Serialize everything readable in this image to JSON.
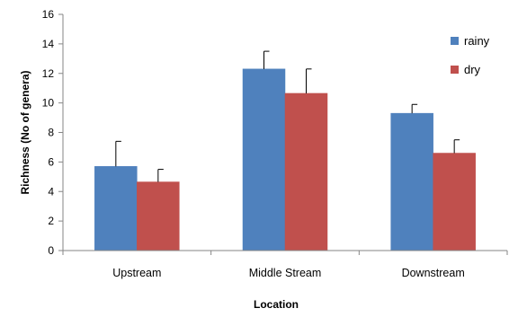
{
  "chart_data": {
    "type": "bar",
    "categories": [
      "Upstream",
      "Middle Stream",
      "Downstream"
    ],
    "series": [
      {
        "name": "rainy",
        "color": "#4F81BD",
        "values": [
          5.7,
          12.3,
          9.3
        ],
        "errors": [
          1.7,
          1.2,
          0.6
        ]
      },
      {
        "name": "dry",
        "color": "#C0504D",
        "values": [
          4.65,
          10.65,
          6.6
        ],
        "errors": [
          0.85,
          1.65,
          0.9
        ]
      }
    ],
    "xlabel": "Location",
    "ylabel": "Richness (No of genera)",
    "ylim": [
      0,
      16
    ],
    "yticks": [
      0,
      2,
      4,
      6,
      8,
      10,
      12,
      14,
      16
    ],
    "grid": false,
    "legend_position": "top-right"
  }
}
